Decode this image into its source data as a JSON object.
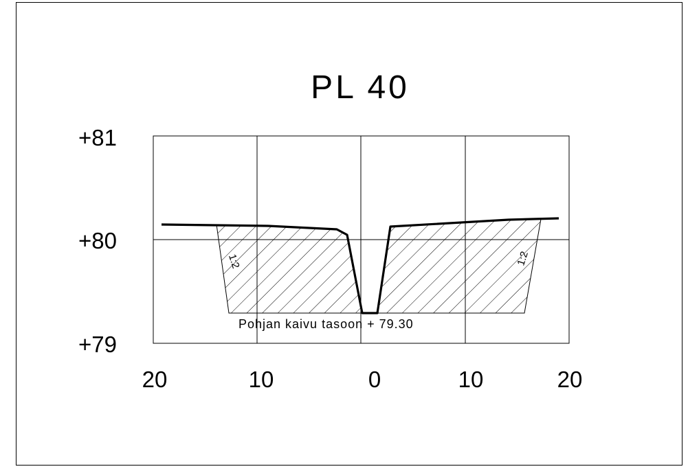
{
  "title": "PL 40",
  "y_axis_labels": [
    "+81",
    "+80",
    "+79"
  ],
  "x_axis_labels": [
    "20",
    "10",
    "0",
    "10",
    "20"
  ],
  "annotation": "Pohjan kaivu tasoon + 79.30",
  "slope_left_label": "1:2",
  "slope_right_label": "1:2",
  "colors": {
    "line": "#000000",
    "background": "#ffffff"
  }
}
